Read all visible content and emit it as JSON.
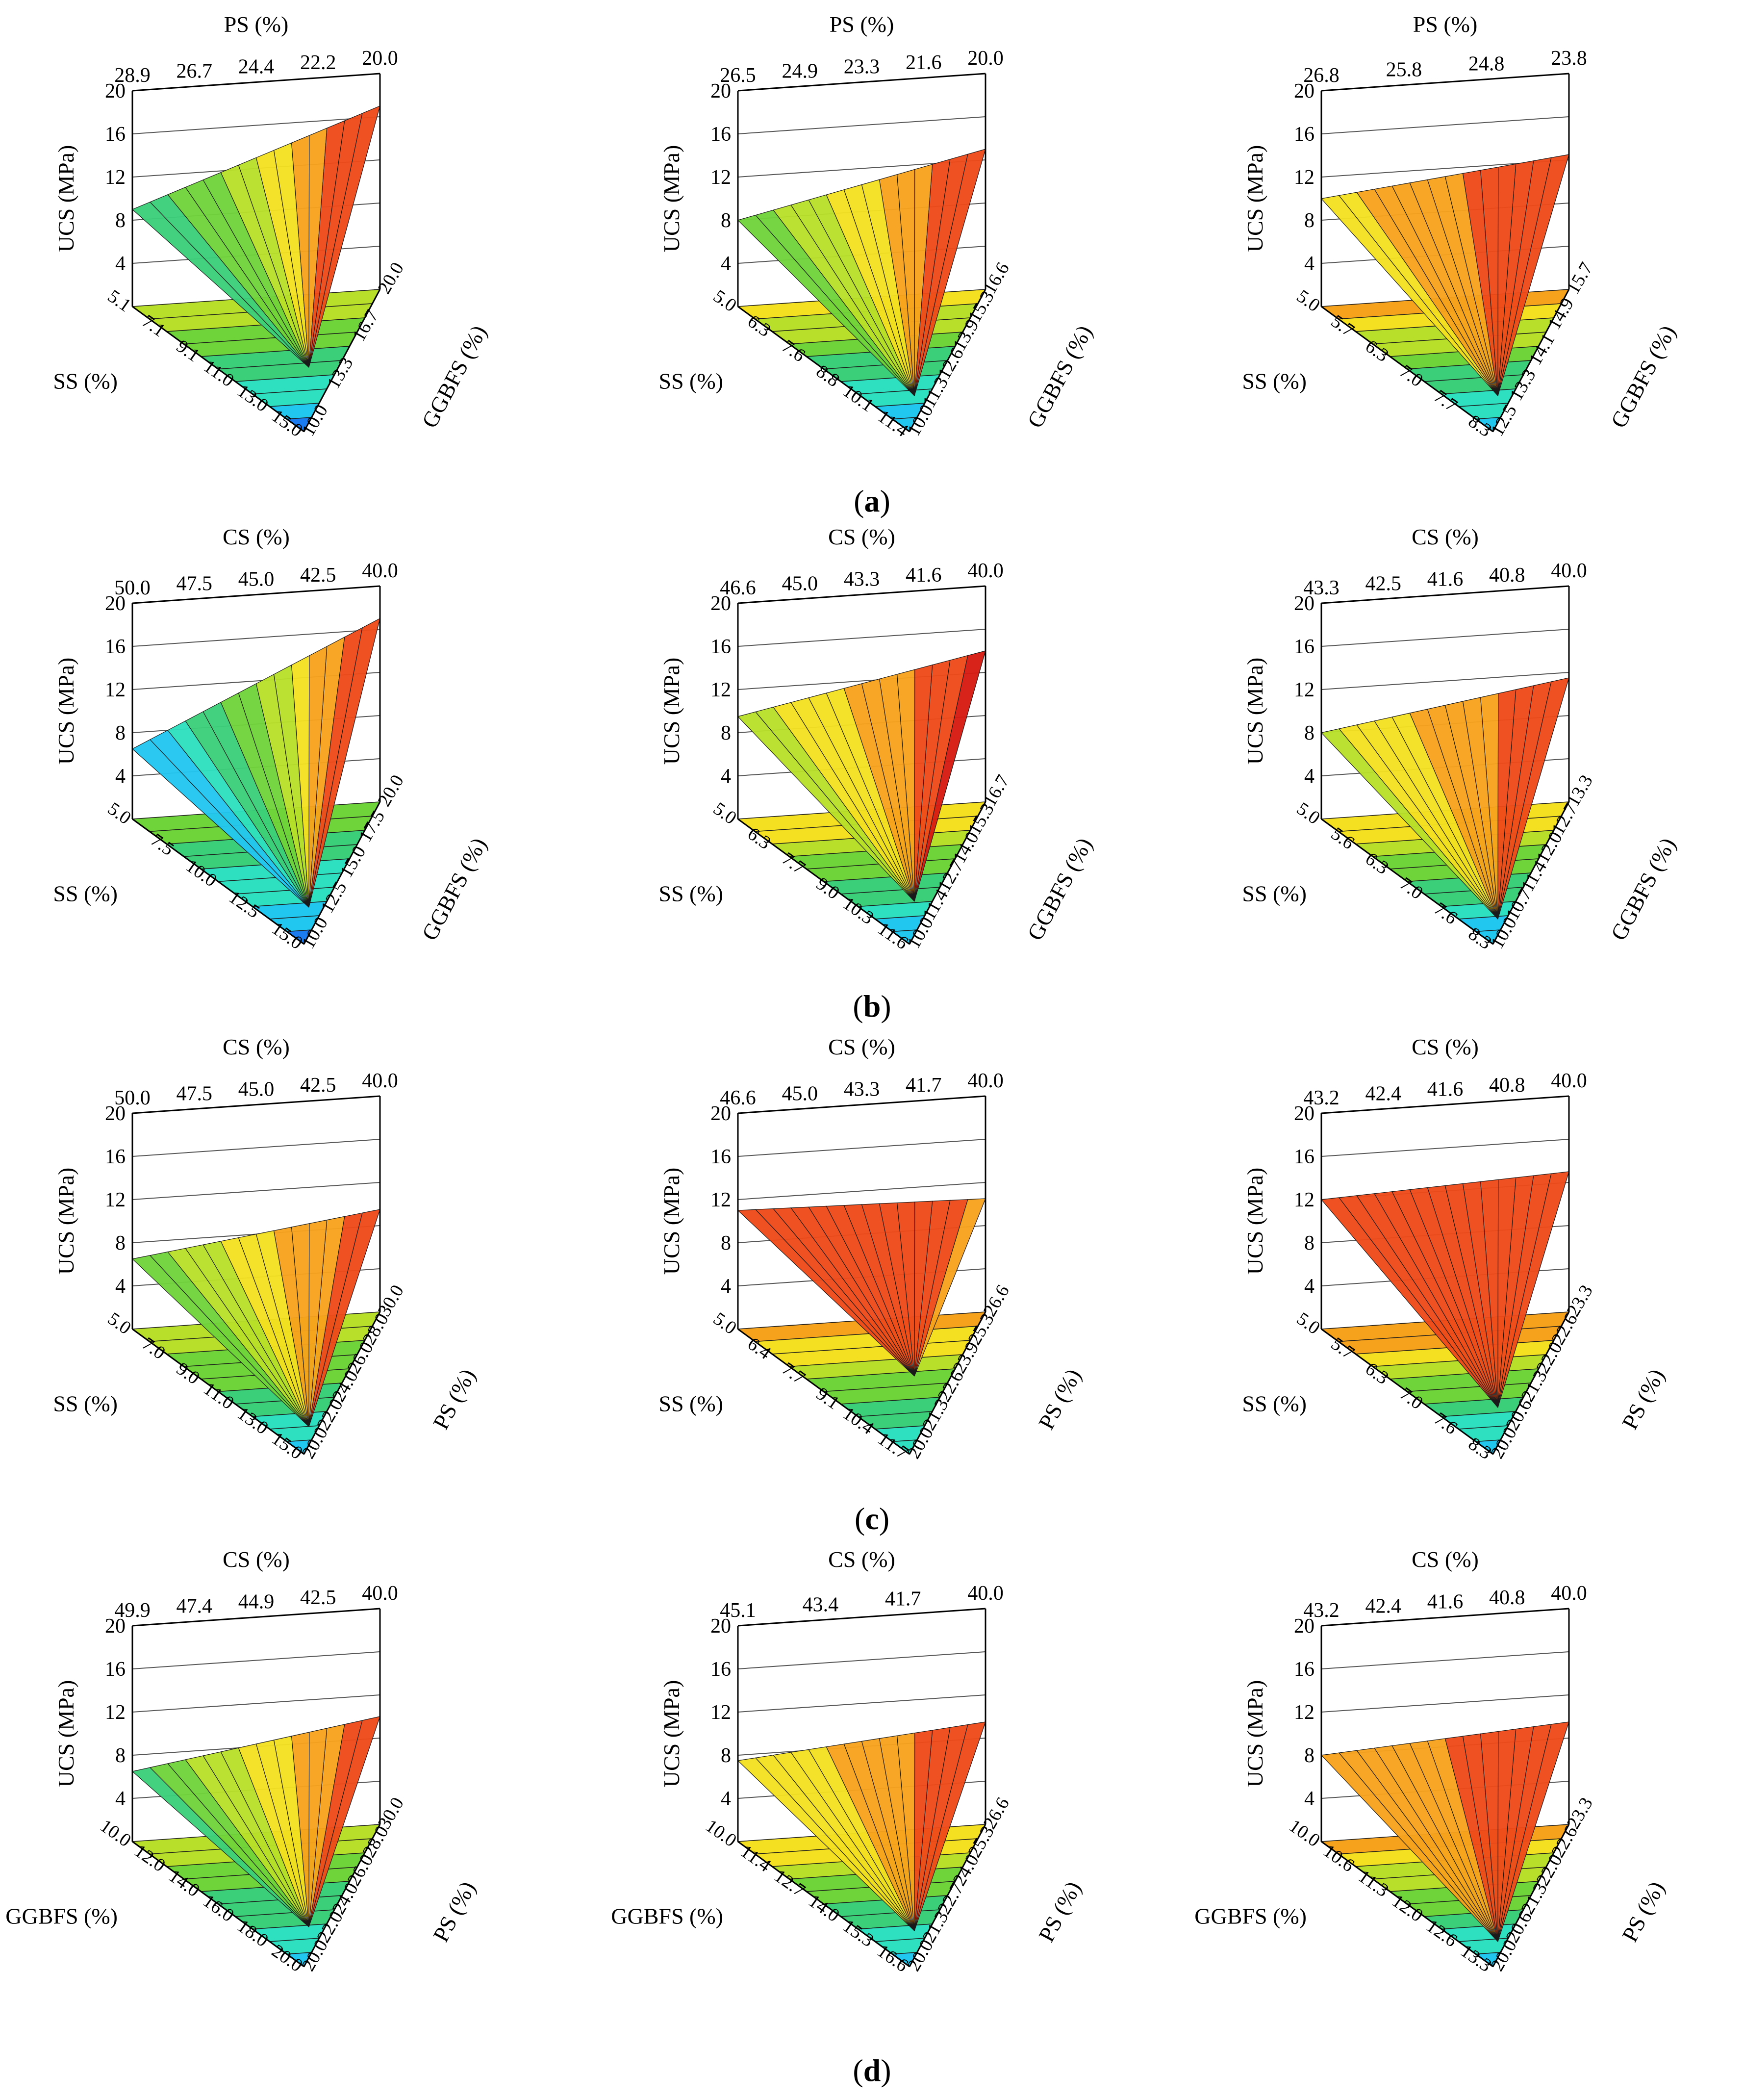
{
  "figure": {
    "row_labels": [
      "(a)",
      "(b)",
      "(c)",
      "(d)"
    ],
    "row_letters": [
      "a",
      "b",
      "c",
      "d"
    ]
  },
  "colors": {
    "scale": [
      "#0a2fd6",
      "#1a7cf0",
      "#22c7f0",
      "#2ee0c0",
      "#3ccf7a",
      "#6fd33a",
      "#b8e02a",
      "#f4e020",
      "#f7a21c",
      "#ee4a1a",
      "#d61a12"
    ],
    "axis": "#000000",
    "grid": "#555555"
  },
  "chart_data": [
    {
      "type": "surface3d-ternary",
      "row": "a",
      "col": 1,
      "title": "",
      "top_axis": {
        "label": "PS (%)",
        "ticks": [
          "28.9",
          "26.7",
          "24.4",
          "22.2",
          "20.0"
        ]
      },
      "ylabel": "UCS (MPa)",
      "ylim": [
        0,
        20
      ],
      "y_ticks": [
        "20",
        "16",
        "12",
        "8",
        "4"
      ],
      "left_axis": {
        "label": "SS (%)",
        "ticks": [
          "5.1",
          "7.1",
          "9.1",
          "11.0",
          "13.0",
          "15.0"
        ]
      },
      "right_axis": {
        "label": "GGBFS (%)",
        "ticks": [
          "20.0",
          "16.7",
          "13.3",
          "10.0"
        ]
      },
      "surface": {
        "corner_left": 9,
        "corner_right": 17,
        "corner_bottom": 6,
        "dip": -1
      }
    },
    {
      "type": "surface3d-ternary",
      "row": "a",
      "col": 2,
      "title": "",
      "top_axis": {
        "label": "PS (%)",
        "ticks": [
          "26.5",
          "24.9",
          "23.3",
          "21.6",
          "20.0"
        ]
      },
      "ylabel": "UCS (MPa)",
      "ylim": [
        0,
        20
      ],
      "y_ticks": [
        "20",
        "16",
        "12",
        "8",
        "4"
      ],
      "left_axis": {
        "label": "SS (%)",
        "ticks": [
          "5.0",
          "6.3",
          "7.6",
          "8.8",
          "10.1",
          "11.4"
        ]
      },
      "right_axis": {
        "label": "GGBFS (%)",
        "ticks": [
          "16.6",
          "15.3",
          "13.9",
          "12.6",
          "11.3",
          "10.0"
        ]
      },
      "surface": {
        "corner_left": 8,
        "corner_right": 13,
        "corner_bottom": 4,
        "dip": 0
      }
    },
    {
      "type": "surface3d-ternary",
      "row": "a",
      "col": 3,
      "title": "",
      "top_axis": {
        "label": "PS (%)",
        "ticks": [
          "26.8",
          "25.8",
          "24.8",
          "23.8"
        ]
      },
      "ylabel": "UCS (MPa)",
      "ylim": [
        0,
        20
      ],
      "y_ticks": [
        "20",
        "16",
        "12",
        "8",
        "4"
      ],
      "left_axis": {
        "label": "SS (%)",
        "ticks": [
          "5.0",
          "5.7",
          "6.3",
          "7.0",
          "7.7",
          "8.3"
        ]
      },
      "right_axis": {
        "label": "GGBFS (%)",
        "ticks": [
          "15.7",
          "14.9",
          "14.1",
          "13.3",
          "12.5"
        ]
      },
      "surface": {
        "corner_left": 10,
        "corner_right": 12.5,
        "corner_bottom": 4,
        "dip": 0
      }
    },
    {
      "type": "surface3d-ternary",
      "row": "b",
      "col": 1,
      "title": "",
      "top_axis": {
        "label": "CS (%)",
        "ticks": [
          "50.0",
          "47.5",
          "45.0",
          "42.5",
          "40.0"
        ]
      },
      "ylabel": "UCS (MPa)",
      "ylim": [
        0,
        20
      ],
      "y_ticks": [
        "20",
        "16",
        "12",
        "8",
        "4"
      ],
      "left_axis": {
        "label": "SS (%)",
        "ticks": [
          "5.0",
          "7.5",
          "10.0",
          "12.5",
          "15.0"
        ]
      },
      "right_axis": {
        "label": "GGBFS (%)",
        "ticks": [
          "20.0",
          "17.5",
          "15.0",
          "12.5",
          "10.0"
        ]
      },
      "surface": {
        "corner_left": 6.5,
        "corner_right": 17,
        "corner_bottom": 6,
        "dip": 3
      }
    },
    {
      "type": "surface3d-ternary",
      "row": "b",
      "col": 2,
      "title": "",
      "top_axis": {
        "label": "CS (%)",
        "ticks": [
          "46.6",
          "45.0",
          "43.3",
          "41.6",
          "40.0"
        ]
      },
      "ylabel": "UCS (MPa)",
      "ylim": [
        0,
        20
      ],
      "y_ticks": [
        "20",
        "16",
        "12",
        "8",
        "4"
      ],
      "left_axis": {
        "label": "SS (%)",
        "ticks": [
          "5.0",
          "6.3",
          "7.7",
          "9.0",
          "10.3",
          "11.6"
        ]
      },
      "right_axis": {
        "label": "GGBFS (%)",
        "ticks": [
          "16.7",
          "15.3",
          "14.0",
          "12.7",
          "11.4",
          "10.0"
        ]
      },
      "surface": {
        "corner_left": 9.5,
        "corner_right": 14,
        "corner_bottom": 4,
        "dip": -1
      }
    },
    {
      "type": "surface3d-ternary",
      "row": "b",
      "col": 3,
      "title": "",
      "top_axis": {
        "label": "CS (%)",
        "ticks": [
          "43.3",
          "42.5",
          "41.6",
          "40.8",
          "40.0"
        ]
      },
      "ylabel": "UCS (MPa)",
      "ylim": [
        0,
        20
      ],
      "y_ticks": [
        "20",
        "16",
        "12",
        "8",
        "4"
      ],
      "left_axis": {
        "label": "SS (%)",
        "ticks": [
          "5.0",
          "5.6",
          "6.3",
          "7.0",
          "7.6",
          "8.3"
        ]
      },
      "right_axis": {
        "label": "GGBFS (%)",
        "ticks": [
          "13.3",
          "12.7",
          "12.0",
          "11.4",
          "10.7",
          "10.0"
        ]
      },
      "surface": {
        "corner_left": 8,
        "corner_right": 11.5,
        "corner_bottom": 3,
        "dip": 0
      }
    },
    {
      "type": "surface3d-ternary",
      "row": "c",
      "col": 1,
      "title": "",
      "top_axis": {
        "label": "CS (%)",
        "ticks": [
          "50.0",
          "47.5",
          "45.0",
          "42.5",
          "40.0"
        ]
      },
      "ylabel": "UCS (MPa)",
      "ylim": [
        0,
        20
      ],
      "y_ticks": [
        "20",
        "16",
        "12",
        "8",
        "4"
      ],
      "left_axis": {
        "label": "SS (%)",
        "ticks": [
          "5.0",
          "7.0",
          "9.0",
          "11.0",
          "13.0",
          "15.0"
        ]
      },
      "right_axis": {
        "label": "PS (%)",
        "ticks": [
          "30.0",
          "28.0",
          "26.0",
          "24.0",
          "22.0",
          "20.0"
        ]
      },
      "surface": {
        "corner_left": 6.5,
        "corner_right": 9.5,
        "corner_bottom": 4.5,
        "dip": 2
      }
    },
    {
      "type": "surface3d-ternary",
      "row": "c",
      "col": 2,
      "title": "",
      "top_axis": {
        "label": "CS (%)",
        "ticks": [
          "46.6",
          "45.0",
          "43.3",
          "41.7",
          "40.0"
        ]
      },
      "ylabel": "UCS (MPa)",
      "ylim": [
        0,
        20
      ],
      "y_ticks": [
        "20",
        "16",
        "12",
        "8",
        "4"
      ],
      "left_axis": {
        "label": "SS (%)",
        "ticks": [
          "5.0",
          "6.4",
          "7.7",
          "9.1",
          "10.4",
          "11.7"
        ]
      },
      "right_axis": {
        "label": "PS (%)",
        "ticks": [
          "26.6",
          "25.3",
          "23.9",
          "22.6",
          "21.3",
          "20.0"
        ]
      },
      "surface": {
        "corner_left": 11,
        "corner_right": 10.5,
        "corner_bottom": 6,
        "dip": -3
      }
    },
    {
      "type": "surface3d-ternary",
      "row": "c",
      "col": 3,
      "title": "",
      "top_axis": {
        "label": "CS (%)",
        "ticks": [
          "43.2",
          "42.4",
          "41.6",
          "40.8",
          "40.0"
        ]
      },
      "ylabel": "UCS (MPa)",
      "ylim": [
        0,
        20
      ],
      "y_ticks": [
        "20",
        "16",
        "12",
        "8",
        "4"
      ],
      "left_axis": {
        "label": "SS (%)",
        "ticks": [
          "5.0",
          "5.7",
          "6.3",
          "7.0",
          "7.6",
          "8.3"
        ]
      },
      "right_axis": {
        "label": "PS (%)",
        "ticks": [
          "23.3",
          "22.6",
          "22.0",
          "21.3",
          "20.6",
          "20.0"
        ]
      },
      "surface": {
        "corner_left": 12,
        "corner_right": 13,
        "corner_bottom": 5,
        "dip": 0
      }
    },
    {
      "type": "surface3d-ternary",
      "row": "d",
      "col": 1,
      "title": "",
      "top_axis": {
        "label": "CS (%)",
        "ticks": [
          "49.9",
          "47.4",
          "44.9",
          "42.5",
          "40.0"
        ]
      },
      "ylabel": "UCS (MPa)",
      "ylim": [
        0,
        20
      ],
      "y_ticks": [
        "20",
        "16",
        "12",
        "8",
        "4"
      ],
      "left_axis": {
        "label": "GGBFS (%)",
        "ticks": [
          "10.0",
          "12.0",
          "14.0",
          "16.0",
          "18.0",
          "20.0"
        ]
      },
      "right_axis": {
        "label": "PS (%)",
        "ticks": [
          "30.0",
          "28.0",
          "26.0",
          "24.0",
          "22.0",
          "20.0"
        ]
      },
      "surface": {
        "corner_left": 6.5,
        "corner_right": 10,
        "corner_bottom": 5,
        "dip": 1
      }
    },
    {
      "type": "surface3d-ternary",
      "row": "d",
      "col": 2,
      "title": "",
      "top_axis": {
        "label": "CS (%)",
        "ticks": [
          "45.1",
          "43.4",
          "41.7",
          "40.0"
        ]
      },
      "ylabel": "UCS (MPa)",
      "ylim": [
        0,
        20
      ],
      "y_ticks": [
        "20",
        "16",
        "12",
        "8",
        "4"
      ],
      "left_axis": {
        "label": "GGBFS (%)",
        "ticks": [
          "10.0",
          "11.4",
          "12.7",
          "14.0",
          "15.3",
          "16.6"
        ]
      },
      "right_axis": {
        "label": "PS (%)",
        "ticks": [
          "26.6",
          "25.3",
          "24.0",
          "22.7",
          "21.3",
          "20.0"
        ]
      },
      "surface": {
        "corner_left": 7.5,
        "corner_right": 9.5,
        "corner_bottom": 4,
        "dip": 0
      }
    },
    {
      "type": "surface3d-ternary",
      "row": "d",
      "col": 3,
      "title": "",
      "top_axis": {
        "label": "CS (%)",
        "ticks": [
          "43.2",
          "42.4",
          "41.6",
          "40.8",
          "40.0"
        ]
      },
      "ylabel": "UCS (MPa)",
      "ylim": [
        0,
        20
      ],
      "y_ticks": [
        "20",
        "16",
        "12",
        "8",
        "4"
      ],
      "left_axis": {
        "label": "GGBFS (%)",
        "ticks": [
          "10.0",
          "10.6",
          "11.3",
          "12.0",
          "12.6",
          "13.3"
        ]
      },
      "right_axis": {
        "label": "PS (%)",
        "ticks": [
          "23.3",
          "22.6",
          "22.0",
          "21.3",
          "20.6",
          "20.0"
        ]
      },
      "surface": {
        "corner_left": 8,
        "corner_right": 9.5,
        "corner_bottom": 3,
        "dip": 0
      }
    }
  ]
}
